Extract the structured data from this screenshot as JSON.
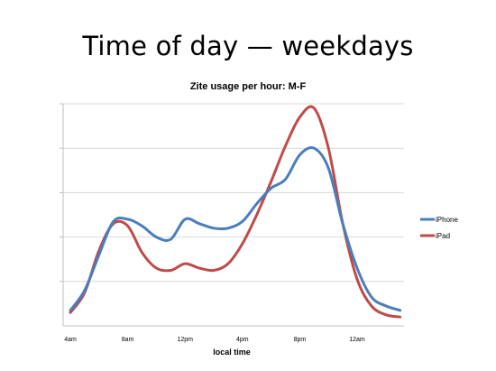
{
  "slide": {
    "title": "Time of day — weekdays"
  },
  "chart_data": {
    "type": "line",
    "title": "Zite usage per hour: M-F",
    "xlabel": "local time",
    "ylabel": "",
    "x_ticks": [
      "4am",
      "8am",
      "12pm",
      "4pm",
      "8pm",
      "12am"
    ],
    "x_hours": [
      4,
      5,
      6,
      7,
      8,
      9,
      10,
      11,
      12,
      13,
      14,
      15,
      16,
      17,
      18,
      19,
      20,
      21,
      22,
      23,
      24,
      25,
      26,
      27
    ],
    "ylim": [
      0,
      5
    ],
    "y_gridlines": [
      1,
      2,
      3,
      4,
      5
    ],
    "grid": "horizontal",
    "legend_position": "right",
    "y_tick_labels_visible": false,
    "series": [
      {
        "name": "iPhone",
        "color": "#4a7ebb",
        "values": [
          0.35,
          0.8,
          1.6,
          2.35,
          2.4,
          2.25,
          2.0,
          1.95,
          2.4,
          2.3,
          2.2,
          2.2,
          2.35,
          2.75,
          3.1,
          3.3,
          3.85,
          4.0,
          3.55,
          2.3,
          1.3,
          0.65,
          0.45,
          0.35
        ]
      },
      {
        "name": "iPad",
        "color": "#be4b48",
        "values": [
          0.3,
          0.75,
          1.7,
          2.3,
          2.25,
          1.65,
          1.3,
          1.25,
          1.4,
          1.3,
          1.25,
          1.4,
          1.85,
          2.5,
          3.25,
          4.05,
          4.7,
          4.9,
          4.0,
          2.3,
          1.05,
          0.45,
          0.25,
          0.2
        ]
      }
    ]
  }
}
